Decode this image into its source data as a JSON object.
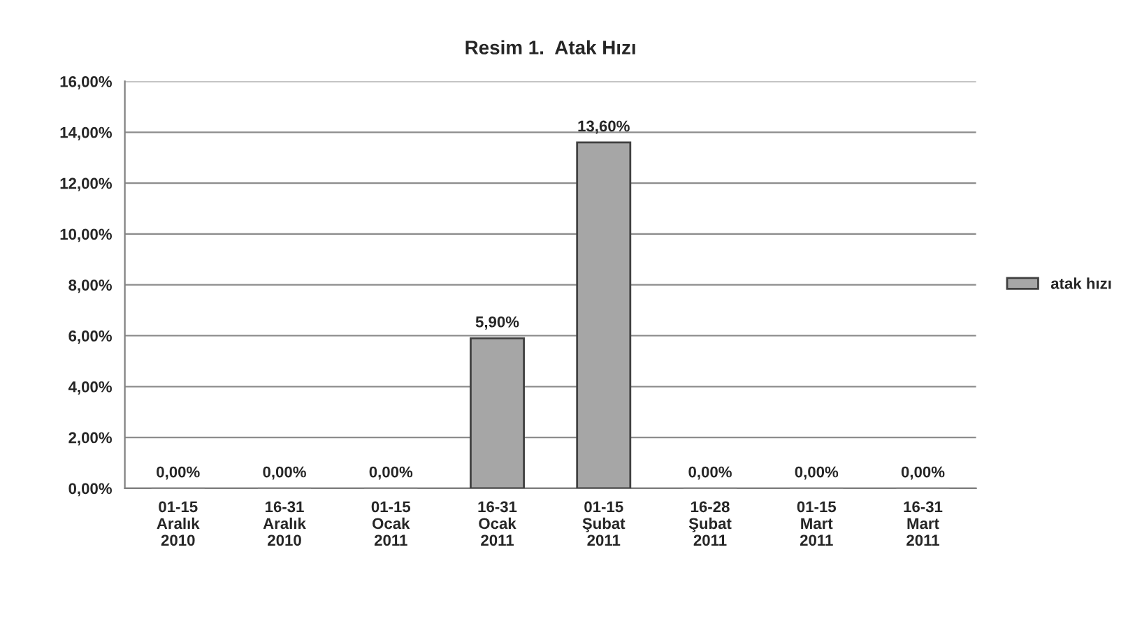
{
  "chart_data": {
    "type": "bar",
    "title": "Resim 1.  Atak Hızı",
    "categories": [
      "01-15\nAralık\n2010",
      "16-31\nAralık\n2010",
      "01-15\nOcak\n2011",
      "16-31\nOcak\n2011",
      "01-15\nŞubat\n2011",
      "16-28\nŞubat\n2011",
      "01-15\nMart\n2011",
      "16-31\nMart\n2011"
    ],
    "series": [
      {
        "name": "atak hızı",
        "color": "#a6a6a6",
        "values": [
          0,
          0,
          0,
          5.9,
          13.6,
          0,
          0,
          0
        ],
        "value_labels": [
          "0,00%",
          "0,00%",
          "0,00%",
          "5,90%",
          "13,60%",
          "0,00%",
          "0,00%",
          "0,00%"
        ]
      }
    ],
    "ylim": [
      0,
      16
    ],
    "yticks": [
      {
        "value": 0,
        "label": "0,00%"
      },
      {
        "value": 2,
        "label": "2,00%"
      },
      {
        "value": 4,
        "label": "4,00%"
      },
      {
        "value": 6,
        "label": "6,00%"
      },
      {
        "value": 8,
        "label": "8,00%"
      },
      {
        "value": 10,
        "label": "10,00%"
      },
      {
        "value": 12,
        "label": "12,00%"
      },
      {
        "value": 14,
        "label": "14,00%"
      },
      {
        "value": 16,
        "label": "16,00%"
      }
    ],
    "grid": "y",
    "legend": "right"
  }
}
